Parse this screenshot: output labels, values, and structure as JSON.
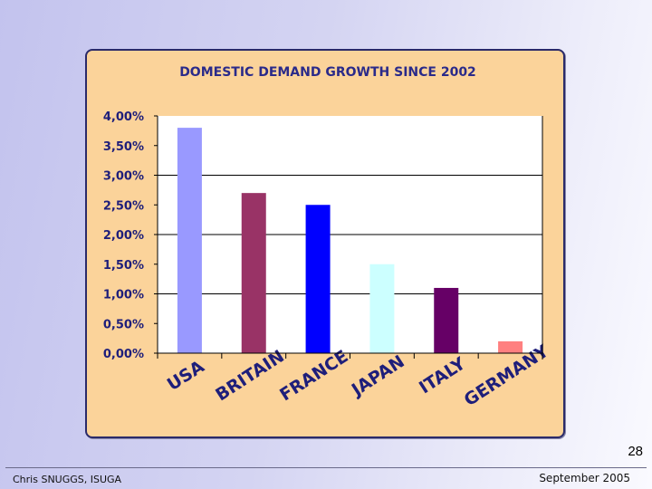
{
  "chart_data": {
    "type": "bar",
    "title": "DOMESTIC DEMAND GROWTH SINCE 2002",
    "categories": [
      "USA",
      "BRITAIN",
      "FRANCE",
      "JAPAN",
      "ITALY",
      "GERMANY"
    ],
    "values": [
      3.8,
      2.7,
      2.5,
      1.5,
      1.1,
      0.2
    ],
    "bar_colors": [
      "#9999ff",
      "#993366",
      "#0000ff",
      "#ccffff",
      "#660066",
      "#ff8080"
    ],
    "yticks": [
      "0,00%",
      "0,50%",
      "1,00%",
      "1,50%",
      "2,00%",
      "2,50%",
      "3,00%",
      "3,50%",
      "4,00%"
    ],
    "ylim": [
      0,
      4
    ],
    "grid_values": [
      1,
      2,
      3
    ],
    "xlabel": "",
    "ylabel": "",
    "plot_background": "#ffffff",
    "grid": true
  },
  "slide": {
    "page_number": "28",
    "footer_left": "Chris SNUGGS, ISUGA",
    "footer_right": "September 2005"
  }
}
